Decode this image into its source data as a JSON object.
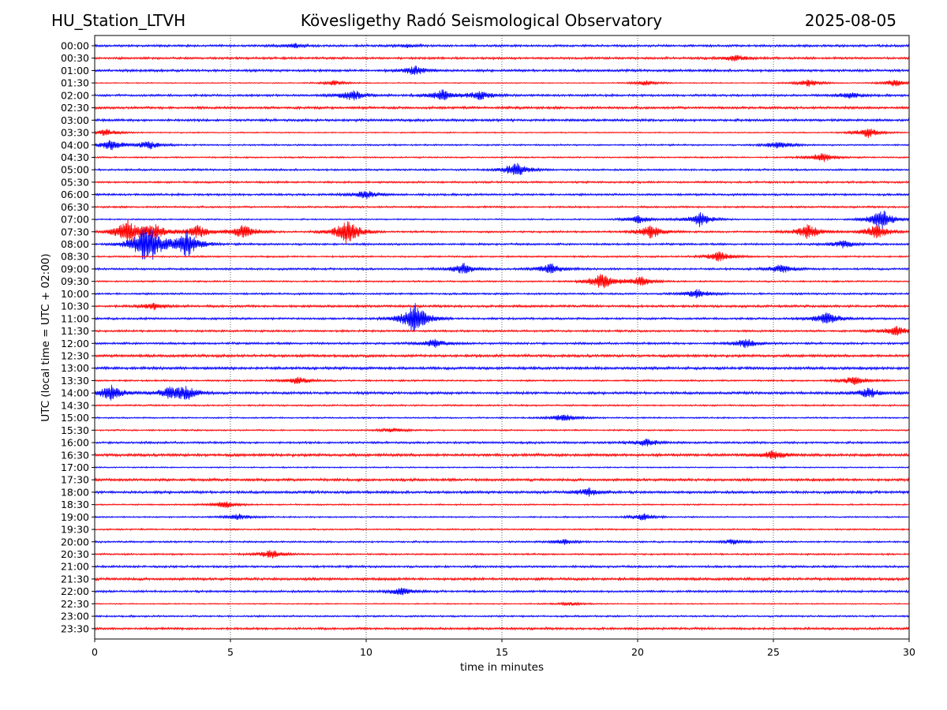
{
  "header": {
    "station": "HU_Station_LTVH",
    "title": "Kövesligethy Radó Seismological Observatory",
    "date": "2025-08-05"
  },
  "chart_data": {
    "type": "line",
    "title": "Kövesligethy Radó Seismological Observatory",
    "xlabel": "time in minutes",
    "ylabel": "UTC (local time = UTC + 02:00)",
    "xlim": [
      0,
      30
    ],
    "x_ticks": [
      "0",
      "5",
      "10",
      "15",
      "20",
      "25",
      "30"
    ],
    "grid": "vertical dotted lines at x ticks",
    "colors": [
      "#0000ff",
      "#ff0000"
    ],
    "rows": [
      "00:00",
      "00:30",
      "01:00",
      "01:30",
      "02:00",
      "02:30",
      "03:00",
      "03:30",
      "04:00",
      "04:30",
      "05:00",
      "05:30",
      "06:00",
      "06:30",
      "07:00",
      "07:30",
      "08:00",
      "08:30",
      "09:00",
      "09:30",
      "10:00",
      "10:30",
      "11:00",
      "11:30",
      "12:00",
      "12:30",
      "13:00",
      "13:30",
      "14:00",
      "14:30",
      "15:00",
      "15:30",
      "16:00",
      "16:30",
      "17:00",
      "17:30",
      "18:00",
      "18:30",
      "19:00",
      "19:30",
      "20:00",
      "20:30",
      "21:00",
      "21:30",
      "22:00",
      "22:30",
      "23:00",
      "23:30"
    ],
    "events": [
      {
        "row": "00:00",
        "t": 7.4,
        "amp": 0.15
      },
      {
        "row": "00:00",
        "t": 11.5,
        "amp": 0.1
      },
      {
        "row": "00:30",
        "t": 23.6,
        "amp": 0.25
      },
      {
        "row": "01:00",
        "t": 11.8,
        "amp": 0.35
      },
      {
        "row": "01:30",
        "t": 8.8,
        "amp": 0.2
      },
      {
        "row": "01:30",
        "t": 20.3,
        "amp": 0.2
      },
      {
        "row": "01:30",
        "t": 26.3,
        "amp": 0.3
      },
      {
        "row": "01:30",
        "t": 29.5,
        "amp": 0.3
      },
      {
        "row": "02:00",
        "t": 9.5,
        "amp": 0.45
      },
      {
        "row": "02:00",
        "t": 12.8,
        "amp": 0.45
      },
      {
        "row": "02:00",
        "t": 14.2,
        "amp": 0.35
      },
      {
        "row": "02:00",
        "t": 27.8,
        "amp": 0.25
      },
      {
        "row": "03:30",
        "t": 0.4,
        "amp": 0.3
      },
      {
        "row": "03:30",
        "t": 28.5,
        "amp": 0.4
      },
      {
        "row": "04:00",
        "t": 0.6,
        "amp": 0.4
      },
      {
        "row": "04:00",
        "t": 2.0,
        "amp": 0.35
      },
      {
        "row": "04:00",
        "t": 25.2,
        "amp": 0.35
      },
      {
        "row": "04:30",
        "t": 26.8,
        "amp": 0.4
      },
      {
        "row": "05:00",
        "t": 15.5,
        "amp": 0.6
      },
      {
        "row": "06:00",
        "t": 10.0,
        "amp": 0.35
      },
      {
        "row": "07:00",
        "t": 20.0,
        "amp": 0.35
      },
      {
        "row": "07:00",
        "t": 22.3,
        "amp": 0.6
      },
      {
        "row": "07:00",
        "t": 29.0,
        "amp": 0.85
      },
      {
        "row": "07:30",
        "t": 1.2,
        "amp": 1.0
      },
      {
        "row": "07:30",
        "t": 2.2,
        "amp": 0.6
      },
      {
        "row": "07:30",
        "t": 3.8,
        "amp": 0.55
      },
      {
        "row": "07:30",
        "t": 5.5,
        "amp": 0.6
      },
      {
        "row": "07:30",
        "t": 9.3,
        "amp": 1.1
      },
      {
        "row": "07:30",
        "t": 20.5,
        "amp": 0.55
      },
      {
        "row": "07:30",
        "t": 26.3,
        "amp": 0.6
      },
      {
        "row": "07:30",
        "t": 28.8,
        "amp": 0.6
      },
      {
        "row": "08:00",
        "t": 1.8,
        "amp": 1.0
      },
      {
        "row": "08:00",
        "t": 2.1,
        "amp": 0.9
      },
      {
        "row": "08:00",
        "t": 3.4,
        "amp": 1.1
      },
      {
        "row": "08:00",
        "t": 27.6,
        "amp": 0.3
      },
      {
        "row": "08:30",
        "t": 23.0,
        "amp": 0.4
      },
      {
        "row": "09:00",
        "t": 13.6,
        "amp": 0.45
      },
      {
        "row": "09:00",
        "t": 16.8,
        "amp": 0.45
      },
      {
        "row": "09:00",
        "t": 25.3,
        "amp": 0.35
      },
      {
        "row": "09:30",
        "t": 18.7,
        "amp": 0.7
      },
      {
        "row": "09:30",
        "t": 20.1,
        "amp": 0.4
      },
      {
        "row": "10:00",
        "t": 22.2,
        "amp": 0.35
      },
      {
        "row": "10:30",
        "t": 2.2,
        "amp": 0.25
      },
      {
        "row": "11:00",
        "t": 11.8,
        "amp": 1.3
      },
      {
        "row": "11:00",
        "t": 27.0,
        "amp": 0.55
      },
      {
        "row": "11:30",
        "t": 29.5,
        "amp": 0.4
      },
      {
        "row": "12:00",
        "t": 12.5,
        "amp": 0.35
      },
      {
        "row": "12:00",
        "t": 24.0,
        "amp": 0.35
      },
      {
        "row": "13:30",
        "t": 7.5,
        "amp": 0.3
      },
      {
        "row": "13:30",
        "t": 28.0,
        "amp": 0.35
      },
      {
        "row": "14:00",
        "t": 0.6,
        "amp": 0.6
      },
      {
        "row": "14:00",
        "t": 2.8,
        "amp": 0.45
      },
      {
        "row": "14:00",
        "t": 3.4,
        "amp": 0.45
      },
      {
        "row": "14:00",
        "t": 28.5,
        "amp": 0.4
      },
      {
        "row": "15:00",
        "t": 17.3,
        "amp": 0.35
      },
      {
        "row": "15:30",
        "t": 11.0,
        "amp": 0.2
      },
      {
        "row": "16:00",
        "t": 20.3,
        "amp": 0.3
      },
      {
        "row": "16:30",
        "t": 25.0,
        "amp": 0.35
      },
      {
        "row": "18:00",
        "t": 18.2,
        "amp": 0.3
      },
      {
        "row": "18:30",
        "t": 4.8,
        "amp": 0.3
      },
      {
        "row": "19:00",
        "t": 5.3,
        "amp": 0.25
      },
      {
        "row": "19:00",
        "t": 20.2,
        "amp": 0.3
      },
      {
        "row": "20:00",
        "t": 17.3,
        "amp": 0.2
      },
      {
        "row": "20:00",
        "t": 23.5,
        "amp": 0.2
      },
      {
        "row": "20:30",
        "t": 6.5,
        "amp": 0.35
      },
      {
        "row": "22:00",
        "t": 11.3,
        "amp": 0.3
      },
      {
        "row": "22:30",
        "t": 17.5,
        "amp": 0.15
      }
    ]
  }
}
